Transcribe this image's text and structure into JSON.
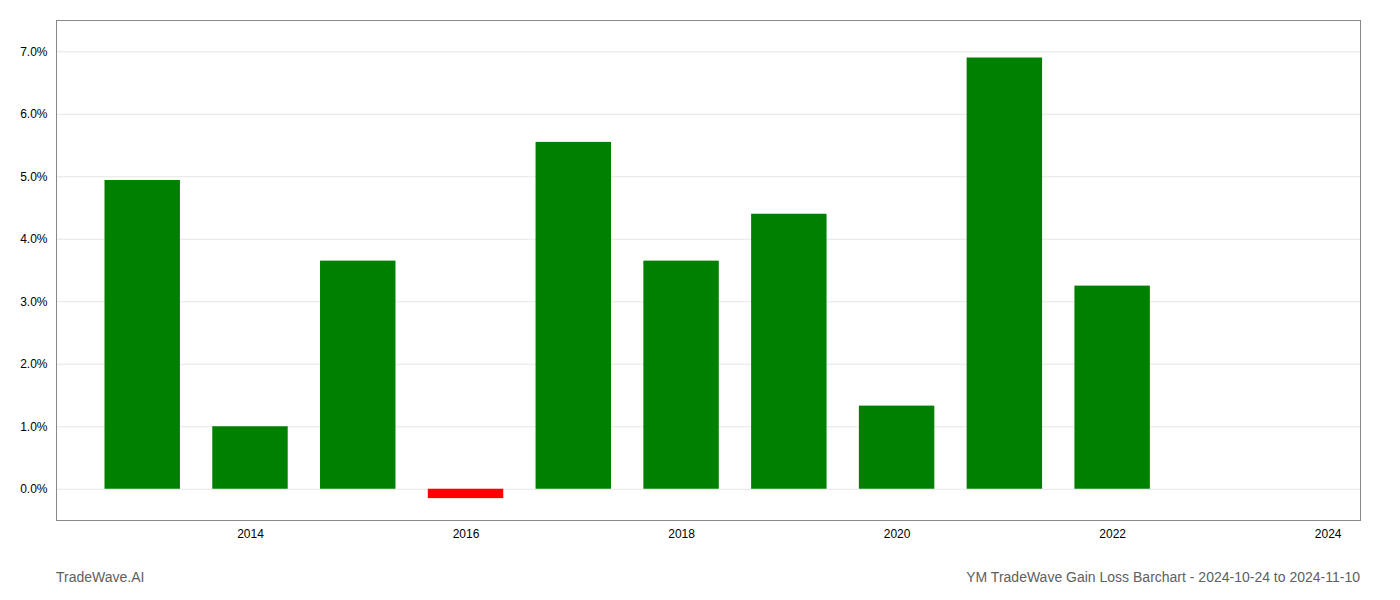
{
  "chart_data": {
    "type": "bar",
    "title": "YM TradeWave Gain Loss Barchart - 2024-10-24 to 2024-11-10",
    "annotations": [
      "TradeWave.AI"
    ],
    "x": [
      2013,
      2014,
      2015,
      2016,
      2017,
      2018,
      2019,
      2020,
      2021,
      2022,
      2023
    ],
    "values": [
      0.0494,
      0.01,
      0.0365,
      -0.0015,
      0.0555,
      0.0365,
      0.044,
      0.0133,
      0.069,
      0.0325,
      0.0
    ],
    "colors": [
      "#008000",
      "#008000",
      "#008000",
      "#ff0000",
      "#008000",
      "#008000",
      "#008000",
      "#008000",
      "#008000",
      "#008000",
      "#008000"
    ],
    "xlim": [
      2012.2,
      2024.3
    ],
    "xticks": [
      2014,
      2016,
      2018,
      2020,
      2022,
      2024
    ],
    "ylim": [
      -0.005,
      0.075
    ],
    "yticks": [
      {
        "value": 0.0,
        "label": "0.0%"
      },
      {
        "value": 0.01,
        "label": "1.0%"
      },
      {
        "value": 0.02,
        "label": "2.0%"
      },
      {
        "value": 0.03,
        "label": "3.0%"
      },
      {
        "value": 0.04,
        "label": "4.0%"
      },
      {
        "value": 0.05,
        "label": "5.0%"
      },
      {
        "value": 0.06,
        "label": "6.0%"
      },
      {
        "value": 0.07,
        "label": "7.0%"
      }
    ],
    "grid": true
  }
}
